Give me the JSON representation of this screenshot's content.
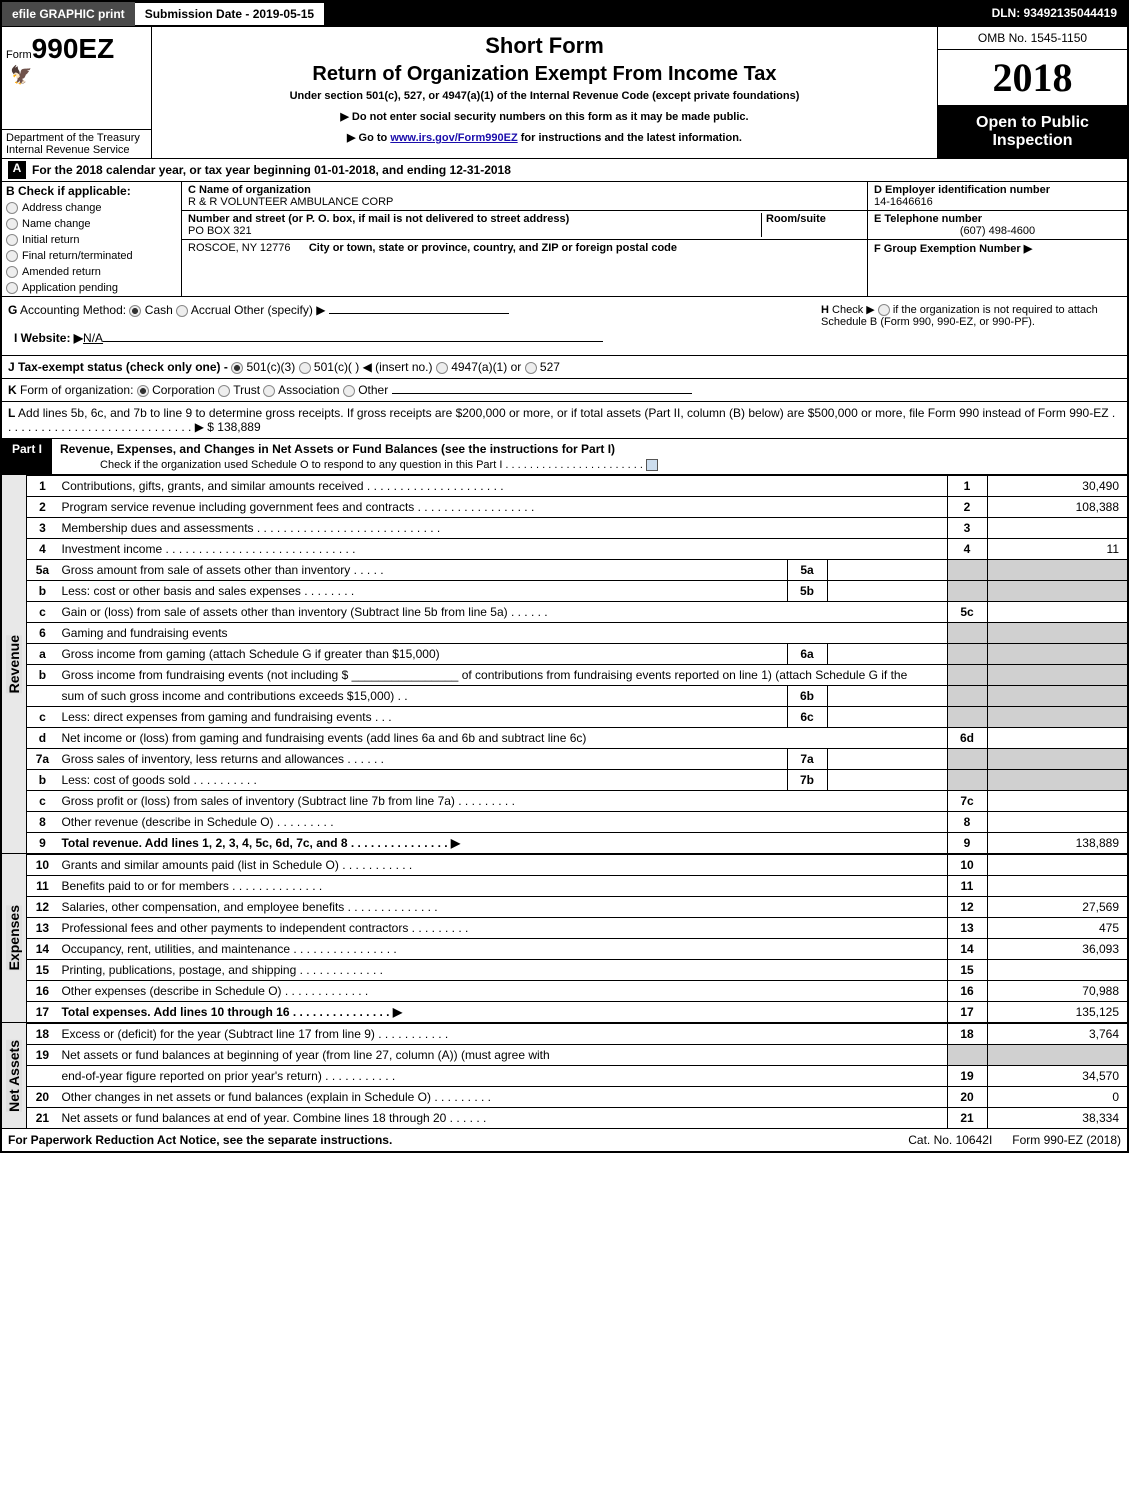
{
  "topbar": {
    "efile_btn": "efile GRAPHIC print",
    "subdate": "Submission Date - 2019-05-15",
    "dln": "DLN: 93492135044419"
  },
  "header": {
    "form_prefix": "Form",
    "form_no": "990EZ",
    "short_form": "Short Form",
    "title": "Return of Organization Exempt From Income Tax",
    "subtitle": "Under section 501(c), 527, or 4947(a)(1) of the Internal Revenue Code (except private foundations)",
    "instr1": "▶ Do not enter social security numbers on this form as it may be made public.",
    "instr2_pre": "▶ Go to ",
    "instr2_link": "www.irs.gov/Form990EZ",
    "instr2_post": " for instructions and the latest information.",
    "dept1": "Department of the Treasury",
    "dept2": "Internal Revenue Service",
    "omb": "OMB No. 1545-1150",
    "year": "2018",
    "open_insp": "Open to Public Inspection"
  },
  "lineA": {
    "label": "A",
    "text_pre": "For the 2018 calendar year, or tax year beginning ",
    "begin": "01-01-2018",
    "mid": ", and ending ",
    "end": "12-31-2018"
  },
  "sectionB": {
    "b_label": "B",
    "b_title": "Check if applicable:",
    "opts": [
      "Address change",
      "Name change",
      "Initial return",
      "Final return/terminated",
      "Amended return",
      "Application pending"
    ],
    "c_label": "C",
    "c_name_lbl": "Name of organization",
    "c_name": "R & R VOLUNTEER AMBULANCE CORP",
    "c_addr_lbl": "Number and street (or P. O. box, if mail is not delivered to street address)",
    "c_room_lbl": "Room/suite",
    "c_addr": "PO BOX 321",
    "c_city_lbl": "City or town, state or province, country, and ZIP or foreign postal code",
    "c_city": "ROSCOE, NY  12776",
    "d_lbl": "D Employer identification number",
    "d_val": "14-1646616",
    "e_lbl": "E Telephone number",
    "e_val": "(607) 498-4600",
    "f_lbl": "F Group Exemption Number ▶"
  },
  "lineG": {
    "g_label": "G",
    "text": "Accounting Method:",
    "opts": [
      "Cash",
      "Accrual",
      "Other (specify) ▶"
    ],
    "h_label": "H",
    "h_text_pre": "Check ▶ ",
    "h_text": " if the organization is not required to attach Schedule B (Form 990, 990-EZ, or 990-PF)."
  },
  "lineI": {
    "label": "I Website: ▶",
    "val": "N/A"
  },
  "lineJ": {
    "label": "J",
    "text": "Tax-exempt status (check only one) - ",
    "opts": [
      "501(c)(3)",
      "501(c)(  ) ◀ (insert no.)",
      "4947(a)(1) or",
      "527"
    ]
  },
  "lineK": {
    "label": "K",
    "text": "Form of organization: ",
    "opts": [
      "Corporation",
      "Trust",
      "Association",
      "Other"
    ]
  },
  "lineL": {
    "label": "L",
    "text": "Add lines 5b, 6c, and 7b to line 9 to determine gross receipts. If gross receipts are $200,000 or more, or if total assets (Part II, column (B) below) are $500,000 or more, file Form 990 instead of Form 990-EZ  . . . . . . . . . . . . . . . . . . . . . . . . . . . . . ▶ $ 138,889"
  },
  "part1": {
    "label": "Part I",
    "title": "Revenue, Expenses, and Changes in Net Assets or Fund Balances (see the instructions for Part I)",
    "sub": "Check if the organization used Schedule O to respond to any question in this Part I . . . . . . . . . . . . . . . . . . . . . . ."
  },
  "sections": {
    "revenue": "Revenue",
    "expenses": "Expenses",
    "netassets": "Net Assets"
  },
  "lines": [
    {
      "n": "1",
      "d": "Contributions, gifts, grants, and similar amounts received  . . . . . . . . . . . . . . . . . . . . .",
      "rn": "1",
      "rv": "30,490"
    },
    {
      "n": "2",
      "d": "Program service revenue including government fees and contracts . . . . . . . . . . . . . . . . . .",
      "rn": "2",
      "rv": "108,388"
    },
    {
      "n": "3",
      "d": "Membership dues and assessments  . . . . . . . . . . . . . . . . . . . . . . . . . . . .",
      "rn": "3",
      "rv": ""
    },
    {
      "n": "4",
      "d": "Investment income  . . . . . . . . . . . . . . . . . . . . . . . . . . . . .",
      "rn": "4",
      "rv": "11"
    },
    {
      "n": "5a",
      "d": "Gross amount from sale of assets other than inventory  . . . . .",
      "sn": "5a",
      "sv": "",
      "shade": true
    },
    {
      "n": "b",
      "d": "Less: cost or other basis and sales expenses  . . . . . . . .",
      "sn": "5b",
      "sv": "",
      "shade": true
    },
    {
      "n": "c",
      "d": "Gain or (loss) from sale of assets other than inventory (Subtract line 5b from line 5a)        .   .   .   .   .   .",
      "rn": "5c",
      "rv": ""
    },
    {
      "n": "6",
      "d": "Gaming and fundraising events",
      "shade": true,
      "noright": true
    },
    {
      "n": "a",
      "d": "Gross income from gaming (attach Schedule G if greater than $15,000)",
      "sn": "6a",
      "sv": "",
      "shade": true
    },
    {
      "n": "b",
      "d": "Gross income from fundraising events (not including $ ________________ of contributions from fundraising events reported on line 1) (attach Schedule G if the",
      "shade": true,
      "noright": true,
      "tall": true
    },
    {
      "n": "",
      "d": "sum of such gross income and contributions exceeds $15,000)       .   .",
      "sn": "6b",
      "sv": "",
      "shade": true
    },
    {
      "n": "c",
      "d": "Less: direct expenses from gaming and fundraising events        .   .   .",
      "sn": "6c",
      "sv": "",
      "shade": true
    },
    {
      "n": "d",
      "d": "Net income or (loss) from gaming and fundraising events (add lines 6a and 6b and subtract line 6c)",
      "rn": "6d",
      "rv": ""
    },
    {
      "n": "7a",
      "d": "Gross sales of inventory, less returns and allowances            .   .   .   .   .   .",
      "sn": "7a",
      "sv": "",
      "shade": true
    },
    {
      "n": "b",
      "d": "Less: cost of goods sold                       .   .   .   .   .   .   .   .   .   .",
      "sn": "7b",
      "sv": "",
      "shade": true
    },
    {
      "n": "c",
      "d": "Gross profit or (loss) from sales of inventory (Subtract line 7b from line 7a)           .   .   .   .   .   .   .   .   .",
      "rn": "7c",
      "rv": ""
    },
    {
      "n": "8",
      "d": "Other revenue (describe in Schedule O)                       .   .   .   .   .   .   .   .   .",
      "rn": "8",
      "rv": ""
    },
    {
      "n": "9",
      "d": "Total revenue. Add lines 1, 2, 3, 4, 5c, 6d, 7c, and 8      .   .   .   .   .   .   .   .   .   .   .   .   .   .   .   ▶",
      "rn": "9",
      "rv": "138,889",
      "bold": true
    }
  ],
  "exp_lines": [
    {
      "n": "10",
      "d": "Grants and similar amounts paid (list in Schedule O)             .   .   .   .   .   .   .   .   .   .   .",
      "rn": "10",
      "rv": ""
    },
    {
      "n": "11",
      "d": "Benefits paid to or for members                     .   .   .   .   .   .   .   .   .   .   .   .   .   .",
      "rn": "11",
      "rv": ""
    },
    {
      "n": "12",
      "d": "Salaries, other compensation, and employee benefits       .   .   .   .   .   .   .   .   .   .   .   .   .   .",
      "rn": "12",
      "rv": "27,569"
    },
    {
      "n": "13",
      "d": "Professional fees and other payments to independent contractors          .   .   .   .   .   .   .   .   .",
      "rn": "13",
      "rv": "475"
    },
    {
      "n": "14",
      "d": "Occupancy, rent, utilities, and maintenance        .   .   .   .   .   .   .   .   .   .   .   .   .   .   .   .",
      "rn": "14",
      "rv": "36,093"
    },
    {
      "n": "15",
      "d": "Printing, publications, postage, and shipping               .   .   .   .   .   .   .   .   .   .   .   .   .",
      "rn": "15",
      "rv": ""
    },
    {
      "n": "16",
      "d": "Other expenses (describe in Schedule O)                  .   .   .   .   .   .   .   .   .   .   .   .   .",
      "rn": "16",
      "rv": "70,988"
    },
    {
      "n": "17",
      "d": "Total expenses. Add lines 10 through 16          .   .   .   .   .   .   .   .   .   .   .   .   .   .   .   ▶",
      "rn": "17",
      "rv": "135,125",
      "bold": true
    }
  ],
  "na_lines": [
    {
      "n": "18",
      "d": "Excess or (deficit) for the year (Subtract line 17 from line 9)           .   .   .   .   .   .   .   .   .   .   .",
      "rn": "18",
      "rv": "3,764"
    },
    {
      "n": "19",
      "d": "Net assets or fund balances at beginning of year (from line 27, column (A)) (must agree with",
      "shade": true,
      "noright": true
    },
    {
      "n": "",
      "d": "end-of-year figure reported on prior year's return)             .   .   .   .   .   .   .   .   .   .   .",
      "rn": "19",
      "rv": "34,570"
    },
    {
      "n": "20",
      "d": "Other changes in net assets or fund balances (explain in Schedule O)        .   .   .   .   .   .   .   .   .",
      "rn": "20",
      "rv": "0"
    },
    {
      "n": "21",
      "d": "Net assets or fund balances at end of year. Combine lines 18 through 20            .   .   .   .   .   .",
      "rn": "21",
      "rv": "38,334"
    }
  ],
  "footer": {
    "left": "For Paperwork Reduction Act Notice, see the separate instructions.",
    "mid": "Cat. No. 10642I",
    "right": "Form 990-EZ (2018)"
  }
}
